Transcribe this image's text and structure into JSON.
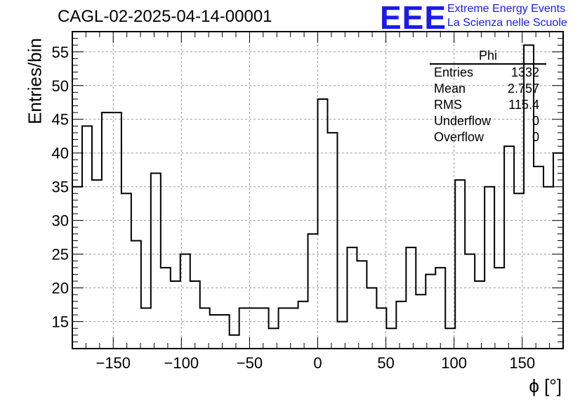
{
  "header": {
    "title": "CAGL-02-2025-04-14-00001",
    "logo_text": "EEE",
    "logo_line1": "Extreme Energy Events",
    "logo_line2": "La Scienza nelle Scuole"
  },
  "stats_box": {
    "name": "Phi",
    "rows": [
      {
        "label": "Entries",
        "value": "1332"
      },
      {
        "label": "Mean",
        "value": "2.757"
      },
      {
        "label": "RMS",
        "value": "115.4"
      },
      {
        "label": "Underflow",
        "value": "0"
      },
      {
        "label": "Overflow",
        "value": "0"
      }
    ]
  },
  "chart_data": {
    "type": "histogram",
    "title": "CAGL-02-2025-04-14-00001",
    "xlabel": "ϕ [°]",
    "ylabel": "Entries/bin",
    "xlim": [
      -180,
      180
    ],
    "ylim": [
      11,
      58
    ],
    "bin_width": 7.2,
    "x_ticks": [
      -150,
      -100,
      -50,
      0,
      50,
      100,
      150
    ],
    "x_tick_labels": [
      "−150",
      "−100",
      "−50",
      "0",
      "50",
      "100",
      "150"
    ],
    "y_ticks": [
      15,
      20,
      25,
      30,
      35,
      40,
      45,
      50,
      55
    ],
    "grid": true,
    "line_color": "#000000",
    "values": [
      35,
      44,
      36,
      46,
      46,
      34,
      27,
      17,
      37,
      23,
      21,
      25,
      21,
      17,
      16,
      16,
      13,
      17,
      17,
      17,
      14,
      17,
      17,
      18,
      28,
      48,
      43,
      15,
      26,
      24,
      20,
      17,
      14,
      18,
      26,
      19,
      22,
      23,
      14,
      36,
      25,
      21,
      35,
      23,
      41,
      34,
      56,
      38,
      35,
      40
    ]
  },
  "colors": {
    "logo": "#1a1aee",
    "grid": "#9a9a9a",
    "axis": "#000000"
  }
}
